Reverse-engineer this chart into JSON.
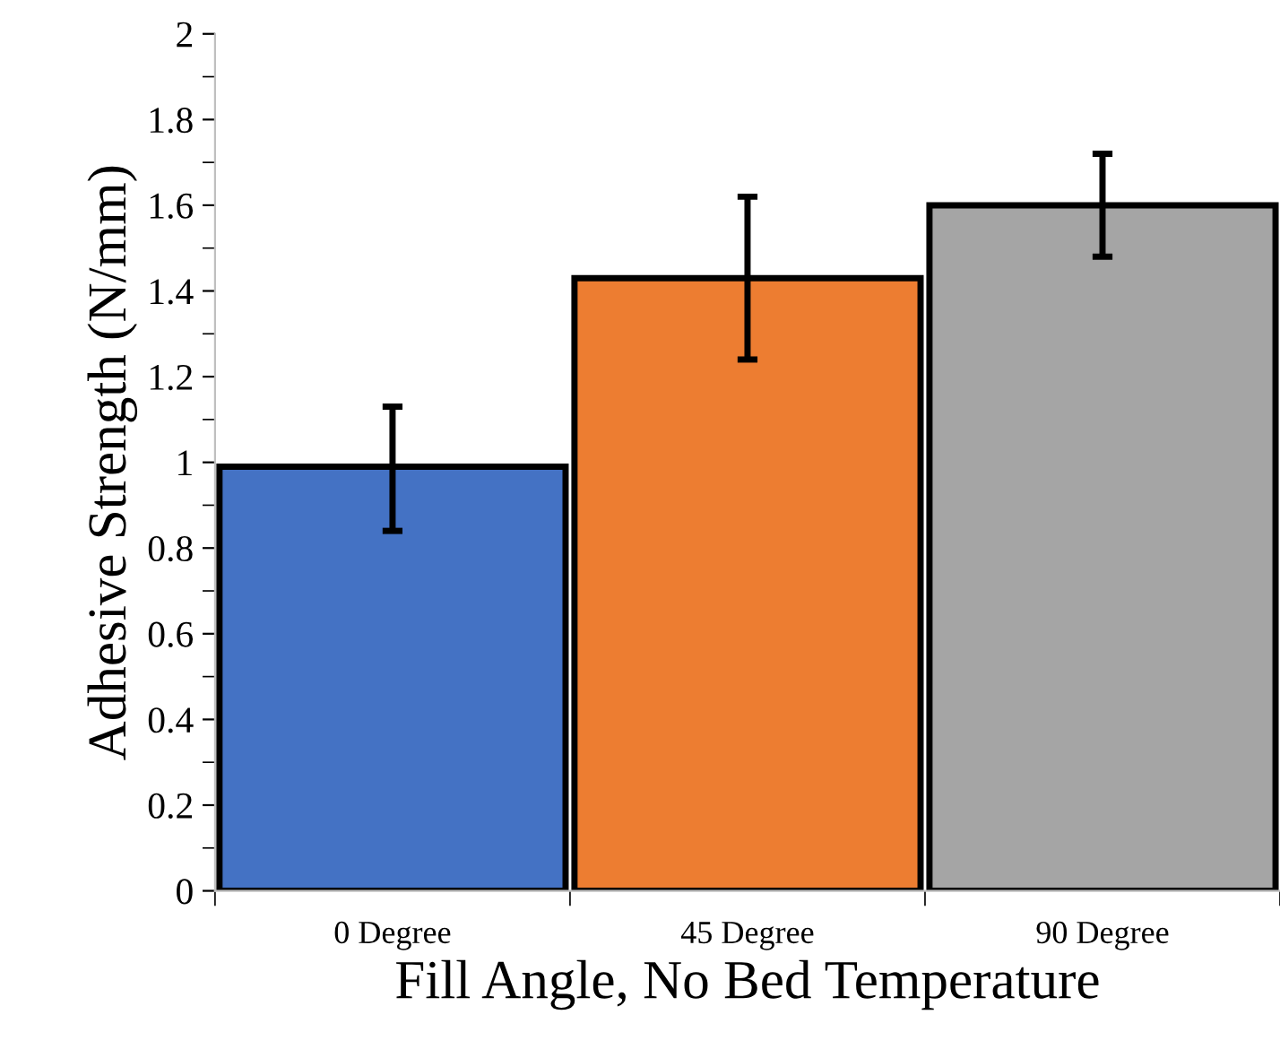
{
  "chart_data": {
    "type": "bar",
    "xlabel": "Fill Angle, No Bed Temperature",
    "ylabel": "Adhesive Strength (N/mm)",
    "categories": [
      "0 Degree",
      "45 Degree",
      "90 Degree"
    ],
    "values": [
      0.99,
      1.43,
      1.6
    ],
    "colors": [
      "#4472c4",
      "#ed7d31",
      "#a5a5a5"
    ],
    "errors": [
      [
        0.84,
        1.13
      ],
      [
        1.24,
        1.62
      ],
      [
        1.48,
        1.72
      ]
    ],
    "ylim": [
      0,
      2
    ],
    "yticks": [
      0,
      0.2,
      0.4,
      0.6,
      0.8,
      1,
      1.2,
      1.4,
      1.6,
      1.8,
      2
    ],
    "grid": false,
    "legend": false
  }
}
